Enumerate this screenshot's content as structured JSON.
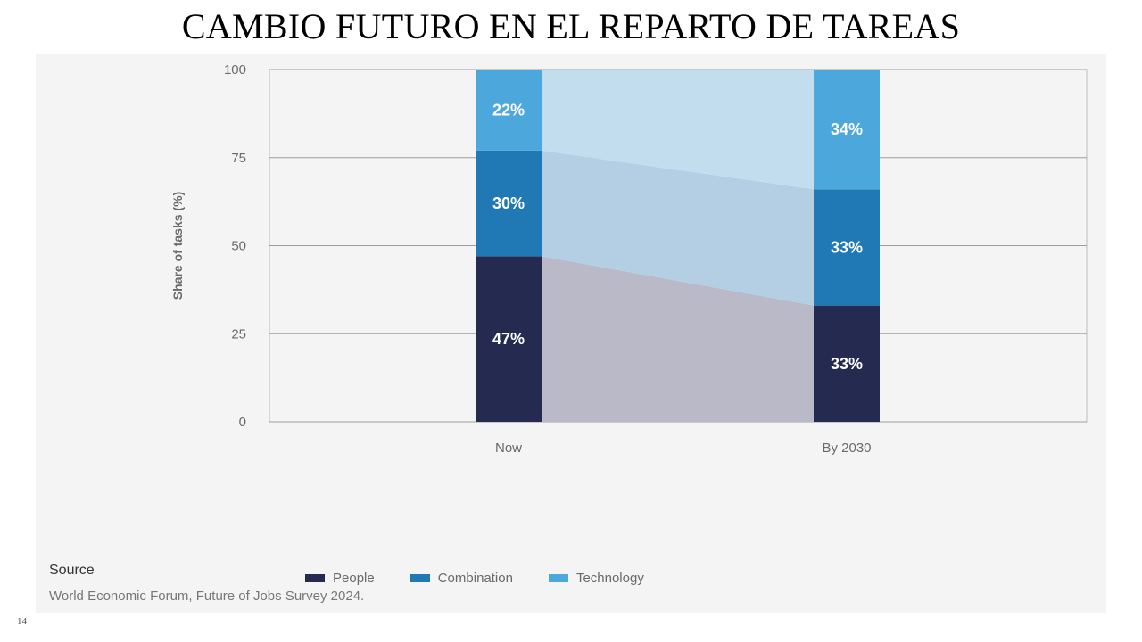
{
  "slide": {
    "title": "CAMBIO FUTURO EN EL REPARTO DE TAREAS",
    "page_number": "14"
  },
  "source": {
    "heading": "Source",
    "text": "World Economic Forum, Future of Jobs Survey 2024."
  },
  "colors": {
    "people": "#252b50",
    "combination": "#2079b4",
    "technology": "#4ca8dc",
    "panel_bg": "#f4f4f4"
  },
  "chart_data": {
    "type": "bar",
    "stacked": true,
    "categories": [
      "Now",
      "By 2030"
    ],
    "series": [
      {
        "name": "People",
        "values": [
          47,
          33
        ],
        "labels": [
          "47%",
          "33%"
        ],
        "color": "#252b50"
      },
      {
        "name": "Combination",
        "values": [
          30,
          33
        ],
        "labels": [
          "30%",
          "33%"
        ],
        "color": "#2079b4"
      },
      {
        "name": "Technology",
        "values": [
          22,
          34
        ],
        "labels": [
          "22%",
          "34%"
        ],
        "color": "#4ca8dc"
      }
    ],
    "ylabel": "Share of tasks (%)",
    "xlabel": "",
    "ylim": [
      0,
      100
    ],
    "yticks": [
      0,
      25,
      50,
      75,
      100
    ],
    "grid": true,
    "legend_position": "bottom-left"
  }
}
